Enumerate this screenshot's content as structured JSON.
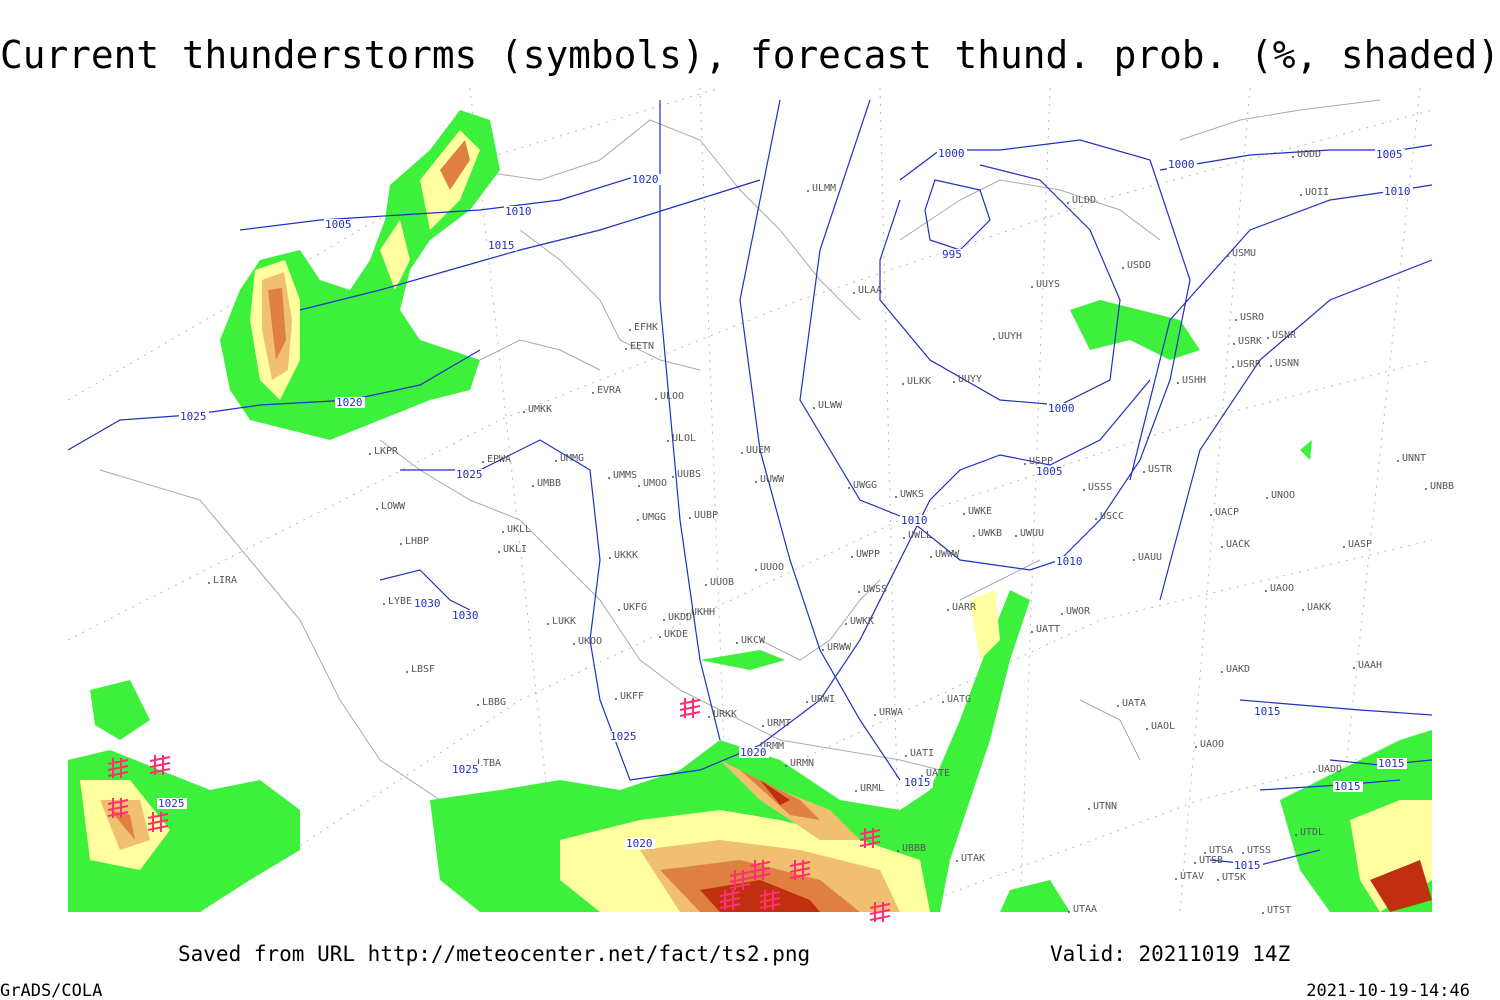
{
  "title": "Current thunderstorms (symbols), forecast thund. prob. (%, shaded)",
  "footer": {
    "source": "Saved from URL http://meteocenter.net/fact/ts2.png",
    "valid": "Valid: 20211019 14Z",
    "software": "GrADS/COLA",
    "timestamp": "2021-10-19-14:46"
  },
  "isobar_labels": [
    "1005",
    "1010",
    "1015",
    "1020",
    "1020",
    "1025",
    "1025",
    "1030",
    "1030",
    "1025",
    "1025",
    "1025",
    "1020",
    "1020",
    "1015",
    "1010",
    "1010",
    "1005",
    "1000",
    "1000",
    "995",
    "1000",
    "1005",
    "1010",
    "1015",
    "1015",
    "1015",
    "1015"
  ],
  "stations": [
    "ULMM",
    "ULDD",
    "UODD",
    "UOII",
    "USDD",
    "USMU",
    "UUYS",
    "ULAA",
    "USRO",
    "USNR",
    "USRK",
    "UUYH",
    "USRR",
    "USNN",
    "UUYY",
    "ULKK",
    "USHH",
    "EFHK",
    "EETN",
    "EVRA",
    "ULOO",
    "ULWW",
    "UMKK",
    "ULOL",
    "UUEM",
    "UMMG",
    "EPWA",
    "UMMS",
    "UUBS",
    "UUWW",
    "UMOO",
    "UMBB",
    "UWGG",
    "UWKS",
    "USPP",
    "USTR",
    "USSS",
    "UNNT",
    "UNBB",
    "UNOO",
    "UWKE",
    "UUBP",
    "UMGG",
    "USCC",
    "UACP",
    "LKPR",
    "LOWW",
    "LHBP",
    "UKLL",
    "UKLI",
    "UWKB",
    "UWUU",
    "UWLL",
    "UWPP",
    "UWWW",
    "UKKK",
    "UACK",
    "UASP",
    "UAUU",
    "UUOO",
    "LIRA",
    "UUOB",
    "UWSS",
    "UAOO",
    "LYBE",
    "UKFG",
    "UKHH",
    "UKDD",
    "UARR",
    "UAKK",
    "UWOR",
    "LUKK",
    "UWKK",
    "UATT",
    "UKOO",
    "UKDE",
    "UKCW",
    "URWW",
    "LBSF",
    "UAKD",
    "UAAH",
    "UKFF",
    "URWI",
    "UATG",
    "LBBG",
    "UATA",
    "URKK",
    "URWA",
    "URMT",
    "UAOL",
    "UAOO",
    "URMM",
    "UATI",
    "URMN",
    "LTBA",
    "UATE",
    "UADD",
    "URML",
    "UTNN",
    "UTDL",
    "UBBB",
    "UTSA",
    "UTSS",
    "UTAK",
    "UTSB",
    "UTAV",
    "UTSK",
    "UTST",
    "UTAA"
  ]
}
